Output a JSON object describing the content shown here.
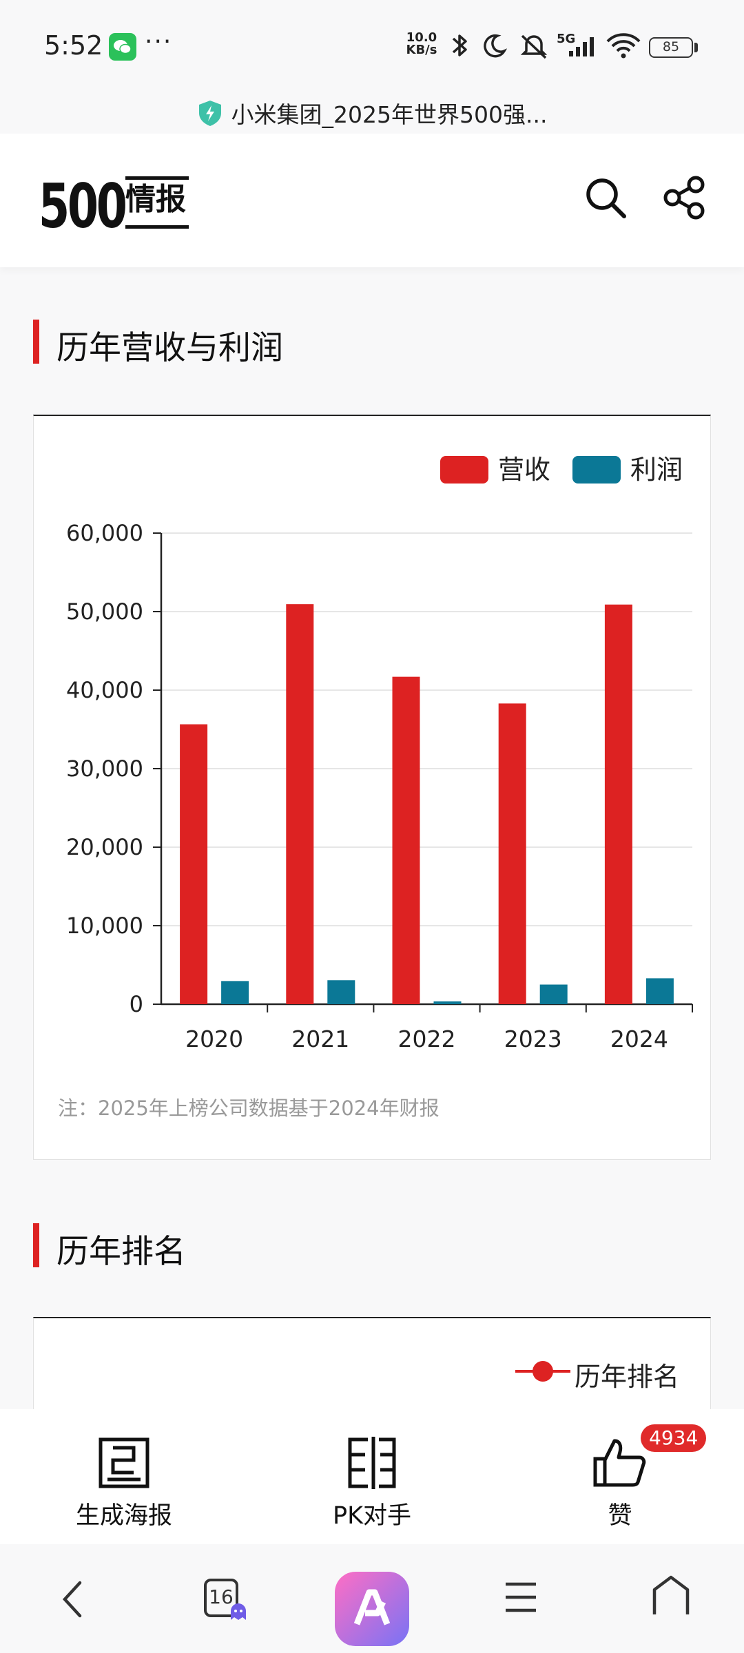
{
  "status_bar": {
    "time": "5:52",
    "more": "···",
    "net_speed_value": "10.0",
    "net_speed_unit": "KB/s",
    "network": "5G",
    "battery": "85"
  },
  "url_bar": {
    "title": "小米集团_2025年世界500强..."
  },
  "header": {
    "logo_number": "500",
    "logo_text": "情报"
  },
  "section_revenue": {
    "title": "历年营收与利润"
  },
  "chart_data": {
    "type": "bar",
    "categories": [
      "2020",
      "2021",
      "2022",
      "2023",
      "2024"
    ],
    "series": [
      {
        "name": "营收",
        "color": "#dd2222",
        "values": [
          35650,
          50950,
          41700,
          38300,
          50900
        ]
      },
      {
        "name": "利润",
        "color": "#0b7896",
        "values": [
          2950,
          3050,
          360,
          2500,
          3300
        ]
      }
    ],
    "ylim": [
      0,
      60000
    ],
    "yticks": [
      "60,000",
      "50,000",
      "40,000",
      "30,000",
      "20,000",
      "10,000",
      "0"
    ],
    "grid": true,
    "legend": "top-right"
  },
  "note": "注：2025年上榜公司数据基于2024年财报",
  "section_rank": {
    "title": "历年排名",
    "legend_label": "历年排名"
  },
  "actions": {
    "poster": "生成海报",
    "pk": "PK对手",
    "like": "赞",
    "like_count": "4934"
  },
  "nav": {
    "tab_count": "16"
  },
  "colors": {
    "accent": "#dd2222",
    "profit": "#0b7896"
  }
}
